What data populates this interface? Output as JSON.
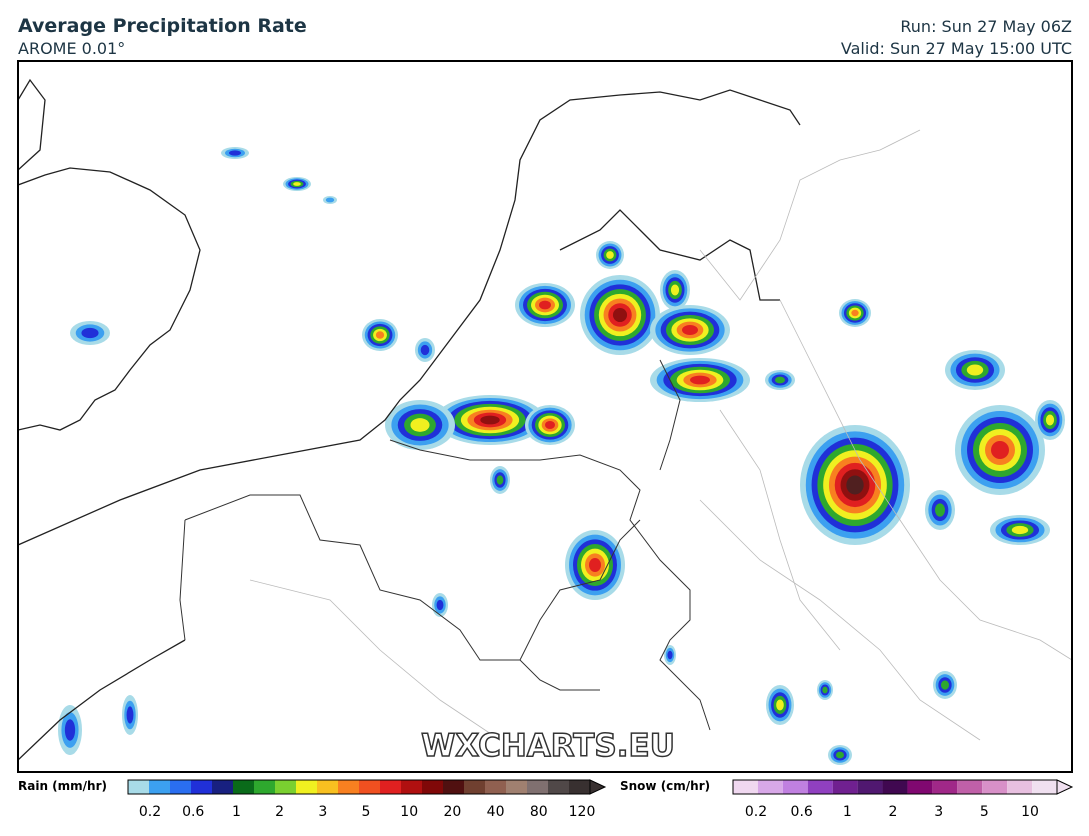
{
  "header": {
    "title": "Average Precipitation Rate",
    "model": "AROME 0.01°",
    "run": "Run: Sun 27 May 06Z",
    "valid": "Valid: Sun 27 May 15:00 UTC"
  },
  "watermark": "WXCHARTS.EU",
  "legend": {
    "rain": {
      "label": "Rain (mm/hr)",
      "ticks": [
        0.2,
        0.6,
        1,
        2,
        3,
        5,
        10,
        20,
        40,
        80,
        120
      ]
    },
    "snow": {
      "label": "Snow (cm/hr)",
      "ticks": [
        0.2,
        0.6,
        1,
        2,
        3,
        5,
        10
      ]
    }
  }
}
